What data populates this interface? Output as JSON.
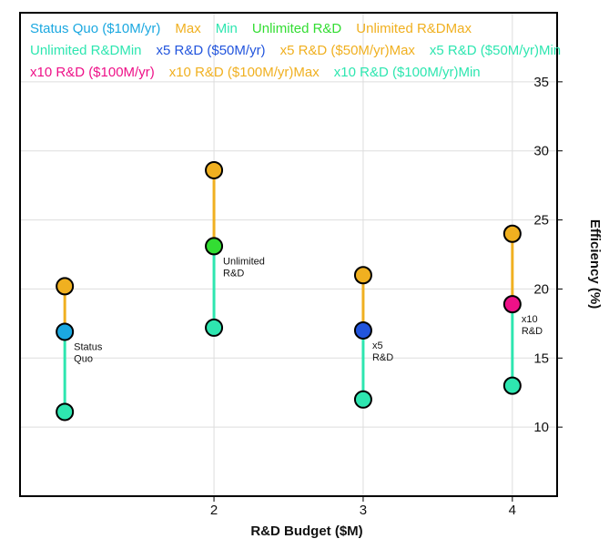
{
  "chart_data": {
    "type": "scatter",
    "xlabel": "R&D Budget ($M)",
    "ylabel": "Efficiency (%)",
    "xlim": [
      0.7,
      4.3
    ],
    "ylim": [
      5,
      40
    ],
    "x_ticks": [
      2,
      3,
      4
    ],
    "y_ticks": [
      10,
      15,
      20,
      25,
      30,
      35
    ],
    "y_axis_side": "right",
    "grid": true,
    "legend_placement": "top-left",
    "legend": [
      {
        "label": "Status Quo ($10M/yr)",
        "color": "#1ba8e0"
      },
      {
        "label": "Max",
        "color": "#f0b020"
      },
      {
        "label": "Min",
        "color": "#2ee6b0"
      },
      {
        "label": "Unlimited R&D",
        "color": "#33dd33"
      },
      {
        "label": "Unlimited R&DMax",
        "color": "#f0b020"
      },
      {
        "label": "Unlimited R&DMin",
        "color": "#2ee6b0"
      },
      {
        "label": "x5 R&D ($50M/yr)",
        "color": "#2255dd"
      },
      {
        "label": "x5 R&D ($50M/yr)Max",
        "color": "#f0b020"
      },
      {
        "label": "x5 R&D ($50M/yr)Min",
        "color": "#2ee6b0"
      },
      {
        "label": "x10 R&D ($100M/yr)",
        "color": "#ee1188"
      },
      {
        "label": "x10 R&D ($100M/yr)Max",
        "color": "#f0b020"
      },
      {
        "label": "x10 R&D ($100M/yr)Min",
        "color": "#2ee6b0"
      }
    ],
    "max_color": "#f0b020",
    "min_color": "#2ee6b0",
    "series": [
      {
        "x": 1,
        "value": 16.9,
        "max": 20.2,
        "min": 11.1,
        "color": "#1ba8e0",
        "annotation": [
          "Status",
          "Quo"
        ]
      },
      {
        "x": 2,
        "value": 23.1,
        "max": 28.6,
        "min": 17.2,
        "color": "#33dd33",
        "annotation": [
          "Unlimited",
          "R&D"
        ]
      },
      {
        "x": 3,
        "value": 17.0,
        "max": 21.0,
        "min": 12.0,
        "color": "#2255dd",
        "annotation": [
          "x5",
          "R&D"
        ]
      },
      {
        "x": 4,
        "value": 18.9,
        "max": 24.0,
        "min": 13.0,
        "color": "#ee1188",
        "annotation": [
          "x10",
          "R&D"
        ]
      }
    ]
  }
}
